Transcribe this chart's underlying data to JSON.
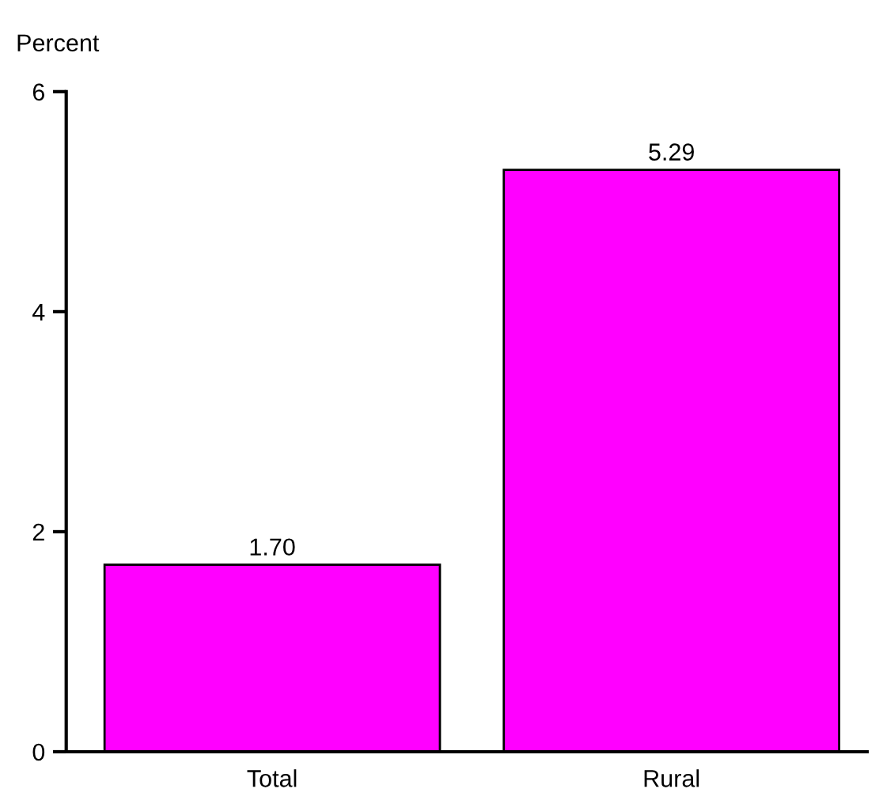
{
  "chart_data": {
    "type": "bar",
    "ylabel": "Percent",
    "categories": [
      "Total",
      "Rural"
    ],
    "values": [
      1.7,
      5.29
    ],
    "value_labels": [
      "1.70",
      "5.29"
    ],
    "color": "#ff00ff",
    "ylim": [
      0,
      6
    ],
    "yticks": [
      0,
      2,
      4,
      6
    ],
    "grid": false,
    "legend": false
  }
}
